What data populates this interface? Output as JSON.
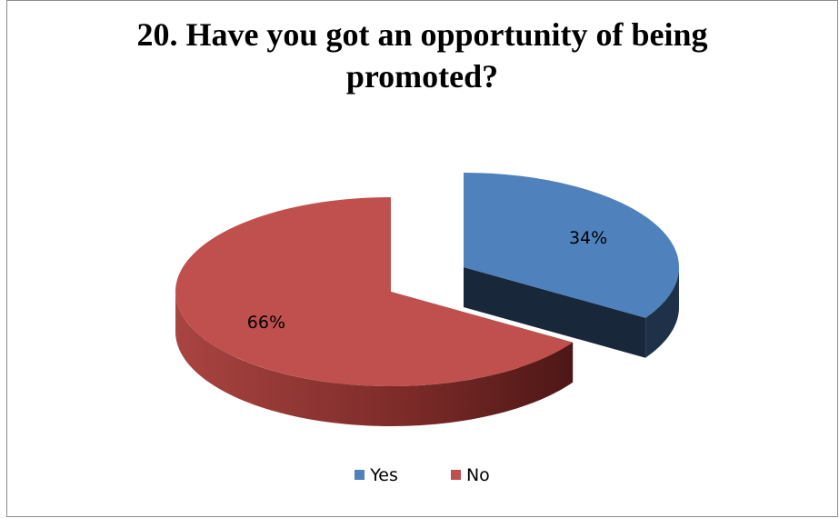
{
  "chart_data": {
    "type": "pie",
    "title_lines": [
      "20. Have you got an opportunity of being",
      "promoted?"
    ],
    "slices": [
      {
        "name": "Yes",
        "value": 34,
        "label": "34%",
        "color": "#4f81bd",
        "exploded": true
      },
      {
        "name": "No",
        "value": 66,
        "label": "66%",
        "color": "#c0504d",
        "exploded": false
      }
    ],
    "legend_position": "bottom",
    "style": "3d-exploded"
  }
}
